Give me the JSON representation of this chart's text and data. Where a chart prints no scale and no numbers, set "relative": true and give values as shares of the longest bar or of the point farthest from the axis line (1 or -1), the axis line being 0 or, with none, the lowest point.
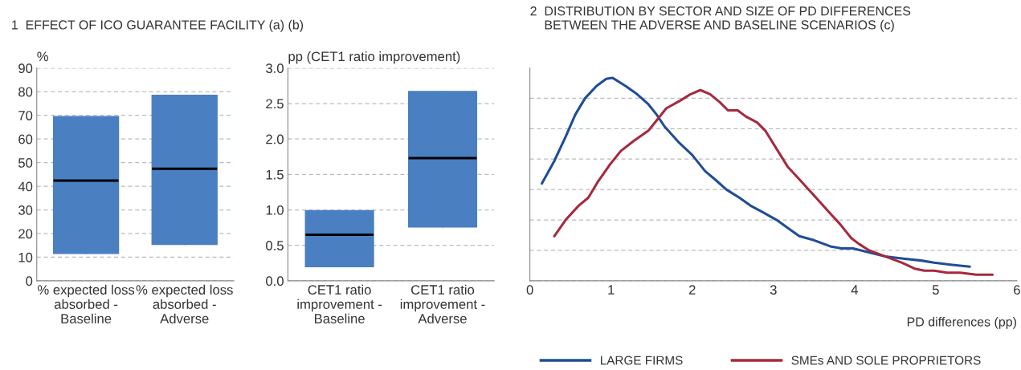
{
  "chart_data": [
    {
      "type": "box",
      "title": "1  EFFECT OF ICO GUARANTEE FACILITY (a) (b)",
      "ylabel": "%",
      "categories": [
        "% expected loss absorbed - Baseline",
        "% expected loss absorbed - Adverse"
      ],
      "series": [
        {
          "color": "#4a7fc1",
          "boxes": [
            {
              "low": 11.6,
              "q1": 11.6,
              "median": 42.4,
              "q3": 69.5,
              "high": 69.5
            },
            {
              "low": 15.4,
              "q1": 15.4,
              "median": 47.4,
              "q3": 78.5,
              "high": 78.5
            }
          ]
        }
      ],
      "ylim": [
        0,
        90
      ],
      "yticks": [
        0,
        10,
        20,
        30,
        40,
        50,
        60,
        70,
        80,
        90
      ],
      "grid": "y"
    },
    {
      "type": "box",
      "ylabel": "pp (CET1 ratio improvement)",
      "categories": [
        "CET1 ratio improvement - Baseline",
        "CET1 ratio improvement - Adverse"
      ],
      "series": [
        {
          "color": "#4a7fc1",
          "boxes": [
            {
              "low": 0.2,
              "q1": 0.2,
              "median": 0.65,
              "q3": 0.99,
              "high": 0.99
            },
            {
              "low": 0.76,
              "q1": 0.76,
              "median": 1.73,
              "q3": 2.67,
              "high": 2.67
            }
          ]
        }
      ],
      "ylim": [
        0,
        3.0
      ],
      "yticks": [
        {
          "value": 0,
          "label": "0.0"
        },
        0.5,
        {
          "value": 1,
          "label": "1.0"
        },
        1.5,
        {
          "value": 2,
          "label": "2.0"
        },
        2.5,
        {
          "value": 3,
          "label": "3.0"
        }
      ],
      "grid": "y"
    },
    {
      "type": "line",
      "title": "2  DISTRIBUTION BY SECTOR AND SIZE OF PD DIFFERENCES\n    BETWEEN THE ADVERSE AND BASELINE SCENARIOS (c)",
      "xlabel": "PD differences (pp)",
      "relative": true,
      "series": [
        {
          "name": "LARGE FIRMS",
          "color": "#1f4e96",
          "x": [
            0.148,
            0.3,
            0.44,
            0.56,
            0.68,
            0.82,
            0.94,
            1.02,
            1.18,
            1.32,
            1.46,
            1.56,
            1.66,
            1.84,
            2.0,
            2.16,
            2.28,
            2.42,
            2.58,
            2.72,
            2.86,
            3.04,
            3.18,
            3.32,
            3.5,
            3.7,
            3.84,
            3.98,
            4.18,
            4.38,
            4.58,
            4.82,
            4.98,
            5.18,
            5.42
          ],
          "values": [
            0.48,
            0.59,
            0.71,
            0.82,
            0.9,
            0.96,
            0.995,
            1.0,
            0.96,
            0.92,
            0.87,
            0.82,
            0.76,
            0.68,
            0.62,
            0.54,
            0.5,
            0.45,
            0.41,
            0.37,
            0.34,
            0.3,
            0.26,
            0.22,
            0.2,
            0.17,
            0.16,
            0.16,
            0.14,
            0.12,
            0.11,
            0.1,
            0.09,
            0.08,
            0.07
          ]
        },
        {
          "name": "SMEs AND SOLE PROPRIETORS",
          "color": "#a52a3f",
          "x": [
            0.3,
            0.44,
            0.6,
            0.72,
            0.84,
            0.98,
            1.12,
            1.28,
            1.46,
            1.56,
            1.68,
            1.86,
            1.98,
            2.1,
            2.22,
            2.34,
            2.44,
            2.56,
            2.66,
            2.8,
            2.9,
            3.04,
            3.18,
            3.32,
            3.48,
            3.66,
            3.82,
            3.96,
            4.06,
            4.18,
            4.38,
            4.58,
            4.74,
            4.86,
            4.98,
            5.14,
            5.3,
            5.5,
            5.7
          ],
          "values": [
            0.22,
            0.3,
            0.37,
            0.41,
            0.49,
            0.57,
            0.64,
            0.69,
            0.74,
            0.79,
            0.85,
            0.89,
            0.92,
            0.94,
            0.92,
            0.88,
            0.84,
            0.84,
            0.81,
            0.78,
            0.74,
            0.65,
            0.56,
            0.5,
            0.43,
            0.35,
            0.28,
            0.21,
            0.18,
            0.15,
            0.12,
            0.09,
            0.06,
            0.05,
            0.05,
            0.04,
            0.04,
            0.03,
            0.03
          ]
        }
      ],
      "xlim": [
        0,
        6
      ],
      "xticks": [
        0,
        1,
        2,
        3,
        4,
        5,
        6
      ],
      "grid": "y",
      "legend": "bottom",
      "tick_labels": "x"
    }
  ]
}
